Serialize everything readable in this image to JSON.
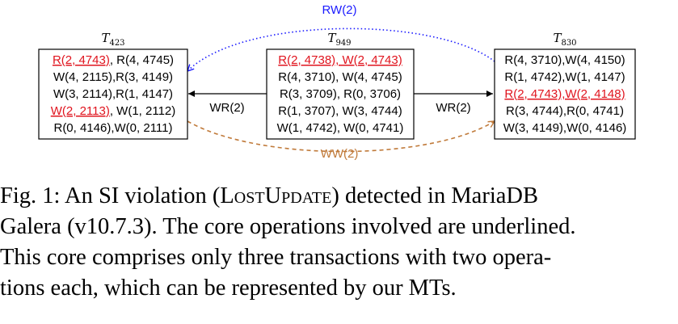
{
  "transactions": {
    "t423": {
      "label_base": "T",
      "label_sub": "423",
      "rows": [
        [
          {
            "text": "R(2, 4743)",
            "core": true
          },
          {
            "text": ", R(4, 4745)",
            "core": false
          }
        ],
        [
          {
            "text": "W(4, 2115),R(3, 4149)",
            "core": false
          }
        ],
        [
          {
            "text": "W(3, 2114),R(1, 4147)",
            "core": false
          }
        ],
        [
          {
            "text": "W(2, 2113)",
            "core": true
          },
          {
            "text": ", W(1, 2112)",
            "core": false
          }
        ],
        [
          {
            "text": "R(0, 4146),W(0, 2111)",
            "core": false
          }
        ]
      ]
    },
    "t949": {
      "label_base": "T",
      "label_sub": "949",
      "rows": [
        [
          {
            "text": "R(2, 4738), W(2, 4743)",
            "core": true
          }
        ],
        [
          {
            "text": "R(4, 3710), W(4, 4745)",
            "core": false
          }
        ],
        [
          {
            "text": "R(3, 3709), R(0, 3706)",
            "core": false
          }
        ],
        [
          {
            "text": "R(1, 3707), W(3, 4744)",
            "core": false
          }
        ],
        [
          {
            "text": "W(1, 4742), W(0, 4741)",
            "core": false
          }
        ]
      ]
    },
    "t830": {
      "label_base": "T",
      "label_sub": "830",
      "rows": [
        [
          {
            "text": "R(4, 3710),W(4, 4150)",
            "core": false
          }
        ],
        [
          {
            "text": "R(1, 4742),W(1, 4147)",
            "core": false
          }
        ],
        [
          {
            "text": "R(2, 4743),W(2, 4148)",
            "core": true
          }
        ],
        [
          {
            "text": "R(3, 4744),R(0, 4741)",
            "core": false
          }
        ],
        [
          {
            "text": "W(3, 4149),W(0, 4146)",
            "core": false
          }
        ]
      ]
    }
  },
  "edges": {
    "rw": {
      "label": "RW(2)",
      "color": "#1a1aff"
    },
    "wr_left": {
      "label": "WR(2)",
      "color": "#000000"
    },
    "wr_right": {
      "label": "WR(2)",
      "color": "#000000"
    },
    "ww": {
      "label": "WW(2)",
      "color": "#c07a3a"
    }
  },
  "colors": {
    "core_op": "#e0141e"
  },
  "caption": {
    "line1_a": "Fig. 1: An SI violation (",
    "line1_sc": "LostUpdate",
    "line1_b": ") detected in MariaDB",
    "line2": "Galera (v10.7.3). The core operations involved are underlined.",
    "line3": "This core comprises only three transactions with two opera-",
    "line4": "tions each, which can be represented by our MTs."
  }
}
